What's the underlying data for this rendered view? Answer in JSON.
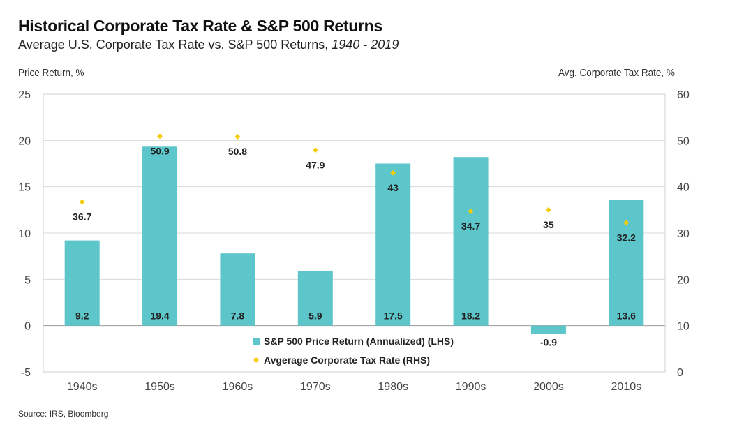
{
  "header": {
    "title": "Historical Corporate Tax Rate & S&P 500 Returns",
    "subtitle": "Average U.S. Corporate Tax Rate vs. S&P 500 Returns, ",
    "subtitle_period": "1940 - 2019"
  },
  "footer": {
    "source": "Source: IRS, Bloomberg"
  },
  "chart_data": {
    "type": "bar+scatter",
    "categories": [
      "1940s",
      "1950s",
      "1960s",
      "1970s",
      "1980s",
      "1990s",
      "2000s",
      "2010s"
    ],
    "ylabel": "Price Return, %",
    "y2label": "Avg. Corporate Tax Rate, %",
    "ylim": [
      -5,
      25
    ],
    "yticks": [
      -5,
      0,
      5,
      10,
      15,
      20,
      25
    ],
    "y2lim": [
      0,
      60
    ],
    "y2ticks": [
      0,
      10,
      20,
      30,
      40,
      50,
      60
    ],
    "grid": true,
    "legend_placement": "bottom-center",
    "series": [
      {
        "name": "S&P 500 Price Return (Annualized) (LHS)",
        "type": "bar",
        "axis": "left",
        "color": "#5cc6ca",
        "values": [
          9.2,
          19.4,
          7.8,
          5.9,
          17.5,
          18.2,
          -0.9,
          13.6
        ]
      },
      {
        "name": "Avgerage Corporate Tax Rate (RHS)",
        "type": "scatter",
        "axis": "right",
        "color": "#f4cc0c",
        "values": [
          36.7,
          50.9,
          50.8,
          47.9,
          43,
          34.7,
          35,
          32.2
        ]
      }
    ]
  }
}
